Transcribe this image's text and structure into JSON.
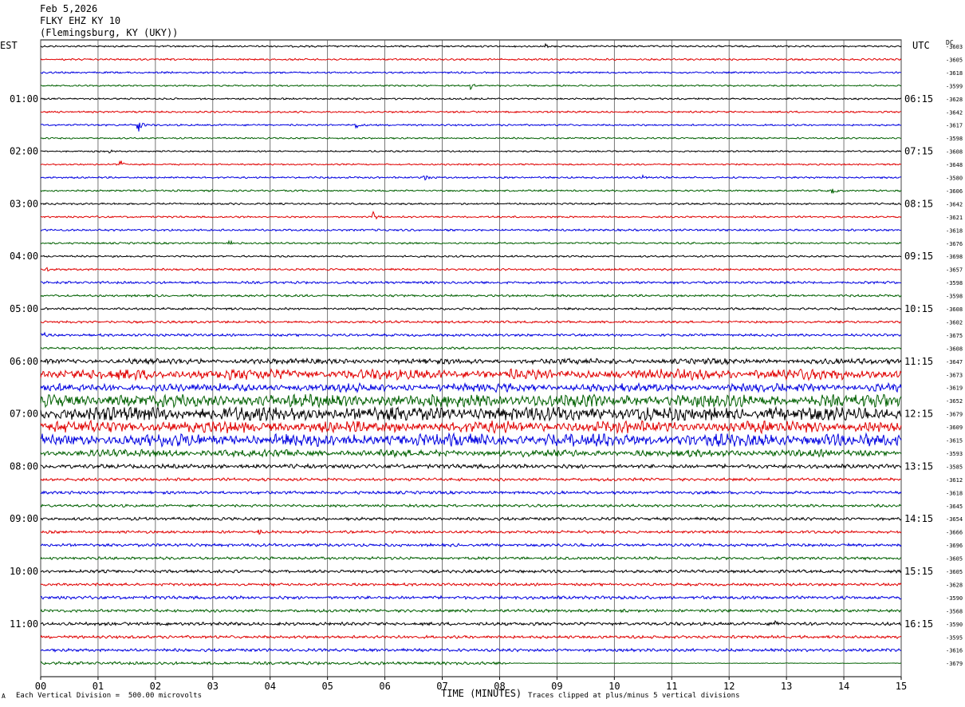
{
  "header": {
    "date": "Feb 5,2026",
    "station": "FLKY EHZ KY 10",
    "location": "(Flemingsburg, KY (UKY))"
  },
  "left_tz": "EST",
  "right_tz": "UTC",
  "dc_label": "DC",
  "footer": {
    "scale_note": "Each Vertical Division =  500.00 microvolts",
    "clip_note": "Traces clipped at plus/minus 5 vertical divisions",
    "marker": "A"
  },
  "colors": {
    "cycle": [
      "#000000",
      "#e00000",
      "#0000e0",
      "#006000"
    ],
    "grid": "#555555"
  },
  "chart_data": {
    "type": "line",
    "title": "FLKY EHZ KY 10",
    "xlabel": "TIME (MINUTES)",
    "ylabel": "",
    "xlim": [
      0,
      15
    ],
    "x_ticks": [
      "00",
      "01",
      "02",
      "03",
      "04",
      "05",
      "06",
      "07",
      "08",
      "09",
      "10",
      "11",
      "12",
      "13",
      "14",
      "15"
    ],
    "row_count": 48,
    "row_minutes": 15,
    "left_time_labels": [
      "01:00",
      "02:00",
      "03:00",
      "04:00",
      "05:00",
      "06:00",
      "07:00",
      "08:00",
      "09:00",
      "10:00",
      "11:00"
    ],
    "right_time_labels": [
      "06:15",
      "07:15",
      "08:15",
      "09:15",
      "10:15",
      "11:15",
      "12:15",
      "13:15",
      "14:15",
      "15:15",
      "16:15"
    ],
    "dc_offsets": [
      "-3603",
      "-3605",
      "-3618",
      "-3599",
      "-3628",
      "-3642",
      "-3617",
      "-3598",
      "-3608",
      "-3648",
      "-3580",
      "-3606",
      "-3642",
      "-3621",
      "-3618",
      "-3676",
      "-3698",
      "-3657",
      "-3598",
      "-3598",
      "-3608",
      "-3602",
      "-3675",
      "-3608",
      "-3647",
      "-3673",
      "-3619",
      "-3652",
      "-3679",
      "-3609",
      "-3615",
      "-3593",
      "-3585",
      "-3612",
      "-3618",
      "-3645",
      "-3654",
      "-3666",
      "-3696",
      "-3605",
      "-3605",
      "-3628",
      "-3590",
      "-3568",
      "-3590",
      "-3595",
      "-3616",
      "-3679"
    ],
    "row_amplitude": [
      0.8,
      0.8,
      0.8,
      0.7,
      0.8,
      0.8,
      0.8,
      0.7,
      0.7,
      0.7,
      0.8,
      0.8,
      0.8,
      0.8,
      0.9,
      0.8,
      0.8,
      0.9,
      1.1,
      1.0,
      1.0,
      1.0,
      1.1,
      1.0,
      2.3,
      4.5,
      3.5,
      5.5,
      6.5,
      5.0,
      5.5,
      3.0,
      1.8,
      1.3,
      1.3,
      1.2,
      1.3,
      1.2,
      1.3,
      1.2,
      1.3,
      1.2,
      1.4,
      1.3,
      1.4,
      1.3,
      1.3,
      1.3
    ],
    "events": [
      {
        "row": 0,
        "minute": 8.8,
        "amp": 3
      },
      {
        "row": 3,
        "minute": 7.5,
        "amp": 8
      },
      {
        "row": 6,
        "minute": 1.7,
        "amp": 14
      },
      {
        "row": 6,
        "minute": 5.5,
        "amp": 5
      },
      {
        "row": 8,
        "minute": 1.2,
        "amp": 3
      },
      {
        "row": 9,
        "minute": 1.4,
        "amp": 5
      },
      {
        "row": 10,
        "minute": 6.7,
        "amp": 4
      },
      {
        "row": 10,
        "minute": 10.5,
        "amp": 4
      },
      {
        "row": 11,
        "minute": 13.8,
        "amp": 4
      },
      {
        "row": 13,
        "minute": 5.8,
        "amp": 8
      },
      {
        "row": 15,
        "minute": 3.3,
        "amp": 3
      },
      {
        "row": 17,
        "minute": 0.1,
        "amp": 4
      },
      {
        "row": 22,
        "minute": 0.0,
        "amp": 5
      },
      {
        "row": 37,
        "minute": 3.8,
        "amp": 4
      },
      {
        "row": 44,
        "minute": 12.8,
        "amp": 4
      }
    ],
    "flat_segments": [
      {
        "row": 47,
        "from": 8.2,
        "to": 15.0
      }
    ]
  }
}
